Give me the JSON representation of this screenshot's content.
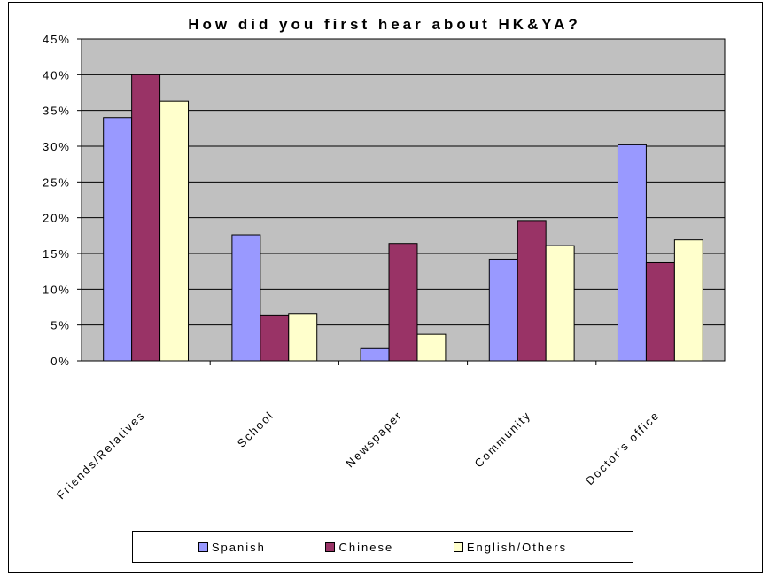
{
  "chart_data": {
    "type": "bar",
    "title": "How did you first hear about HK&YA?",
    "categories": [
      "Friends/Relatives",
      "School",
      "Newspaper",
      "Community",
      "Doctor's office"
    ],
    "series": [
      {
        "name": "Spanish",
        "color": "#9999FF",
        "values": [
          34,
          17.6,
          1.7,
          14.2,
          30.2
        ]
      },
      {
        "name": "Chinese",
        "color": "#993366",
        "values": [
          40,
          6.4,
          16.4,
          19.6,
          13.7
        ]
      },
      {
        "name": "English/Others",
        "color": "#FFFFCC",
        "values": [
          36.3,
          6.6,
          3.7,
          16.1,
          16.9
        ]
      }
    ],
    "ylim": [
      0,
      45
    ],
    "yticks": [
      "0%",
      "5%",
      "10%",
      "15%",
      "20%",
      "25%",
      "30%",
      "35%",
      "40%",
      "45%"
    ],
    "plot_background": "#C0C0C0",
    "grid": true,
    "legend_position": "bottom",
    "xlabel": "",
    "ylabel": ""
  }
}
